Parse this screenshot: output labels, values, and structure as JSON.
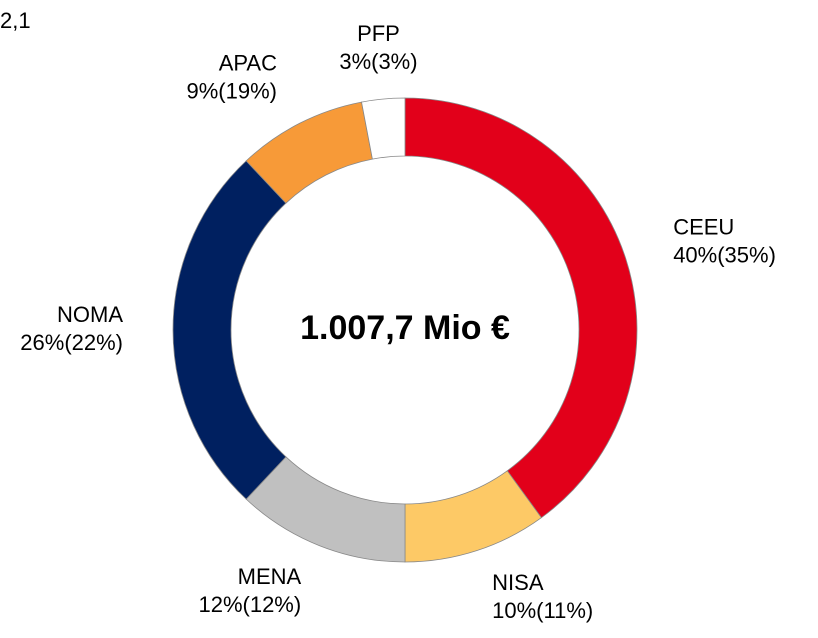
{
  "chart_data": {
    "type": "donut",
    "note": "2,1",
    "center_label": "1.007,7 Mio €",
    "categories": [
      "CEEU",
      "NISA",
      "MENA",
      "NOMA",
      "APAC",
      "PFP"
    ],
    "values": [
      40,
      10,
      12,
      26,
      9,
      3
    ],
    "value_labels": [
      "40%(35%)",
      "10%(11%)",
      "12%(12%)",
      "26%(22%)",
      "9%(19%)",
      "3%(3%)"
    ],
    "colors": [
      "#e2001a",
      "#fdc966",
      "#c0c0c0",
      "#002060",
      "#f79a38",
      "#ffffff"
    ]
  }
}
